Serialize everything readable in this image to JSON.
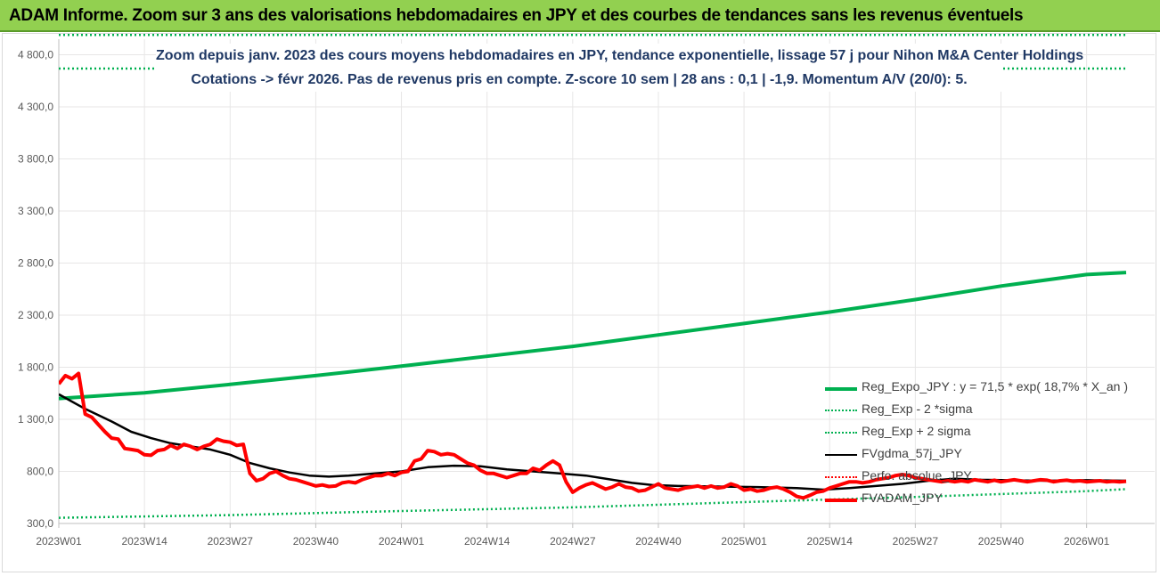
{
  "banner": {
    "title": "ADAM Informe. Zoom sur 3 ans des valorisations hebdomadaires en JPY et des courbes de tendances sans les revenus éventuels"
  },
  "chart_data": {
    "type": "line",
    "title": "Zoom depuis janv. 2023 des cours moyens hebdomadaires en JPY, tendance exponentielle, lissage 57 j pour Nihon M&A Center Holdings",
    "subtitle": "Cotations -> févr 2026. Pas de revenus pris en compte. Z-score 10 sem | 28 ans : 0,1 | -1,9. Momentum A/V (20/0): 5.",
    "ylim": [
      300,
      4950
    ],
    "y_ticks": [
      300,
      800,
      1300,
      1800,
      2300,
      2800,
      3300,
      3800,
      4300,
      4800
    ],
    "y_tick_labels": [
      "300,0",
      "800,0",
      "1 300,0",
      "1 800,0",
      "2 300,0",
      "2 800,0",
      "3 300,0",
      "3 800,0",
      "4 300,0",
      "4 800,0"
    ],
    "x_tick_labels": [
      "2023W01",
      "2023W14",
      "2023W27",
      "2023W40",
      "2024W01",
      "2024W14",
      "2024W27",
      "2024W40",
      "2025W01",
      "2025W14",
      "2025W27",
      "2025W40",
      "2026W01"
    ],
    "x_weeks": 163,
    "x_tick_step": 13,
    "grid": true,
    "legend_position": "bottom-right",
    "colors": {
      "reg": "#00b050",
      "band_low": "#00b050",
      "band_high": "#00b050",
      "fvgdma": "#000000",
      "perfo": "#ff0000",
      "fvadam": "#ff0000",
      "axis": "#bfbfbf",
      "grid": "#e7e6e6",
      "title": "#1f3864"
    },
    "series": [
      {
        "key": "reg",
        "name": "Reg_Expo_JPY : y = 71,5 * exp( 18,7% *  X_an )",
        "style": "solid-thick",
        "points": [
          [
            0,
            1500
          ],
          [
            13,
            1555
          ],
          [
            26,
            1635
          ],
          [
            39,
            1720
          ],
          [
            52,
            1810
          ],
          [
            65,
            1905
          ],
          [
            78,
            2000
          ],
          [
            91,
            2110
          ],
          [
            104,
            2220
          ],
          [
            117,
            2330
          ],
          [
            130,
            2450
          ],
          [
            143,
            2580
          ],
          [
            156,
            2690
          ],
          [
            162,
            2710
          ]
        ]
      },
      {
        "key": "band_low",
        "name": "Reg_Exp - 2 *sigma",
        "style": "dotted",
        "points": [
          [
            0,
            355
          ],
          [
            26,
            380
          ],
          [
            52,
            420
          ],
          [
            78,
            455
          ],
          [
            104,
            505
          ],
          [
            130,
            555
          ],
          [
            156,
            610
          ],
          [
            162,
            630
          ]
        ]
      },
      {
        "key": "band_high",
        "name": "Reg_Exp + 2 sigma",
        "style": "dotted",
        "points": [
          [
            0,
            5000
          ],
          [
            162,
            5000
          ]
        ]
      },
      {
        "key": "fvgdma",
        "name": "FVgdma_57j_JPY",
        "style": "solid",
        "points": [
          [
            0,
            1540
          ],
          [
            4,
            1400
          ],
          [
            8,
            1280
          ],
          [
            11,
            1180
          ],
          [
            14,
            1120
          ],
          [
            17,
            1070
          ],
          [
            20,
            1040
          ],
          [
            23,
            1010
          ],
          [
            26,
            960
          ],
          [
            29,
            880
          ],
          [
            32,
            830
          ],
          [
            35,
            790
          ],
          [
            38,
            760
          ],
          [
            41,
            750
          ],
          [
            44,
            760
          ],
          [
            48,
            780
          ],
          [
            52,
            800
          ],
          [
            56,
            840
          ],
          [
            60,
            855
          ],
          [
            64,
            850
          ],
          [
            68,
            820
          ],
          [
            72,
            800
          ],
          [
            76,
            780
          ],
          [
            80,
            760
          ],
          [
            84,
            720
          ],
          [
            87,
            690
          ],
          [
            90,
            670
          ],
          [
            94,
            660
          ],
          [
            100,
            655
          ],
          [
            106,
            650
          ],
          [
            112,
            640
          ],
          [
            116,
            625
          ],
          [
            120,
            640
          ],
          [
            124,
            660
          ],
          [
            128,
            680
          ],
          [
            132,
            710
          ],
          [
            136,
            730
          ],
          [
            140,
            720
          ],
          [
            144,
            715
          ],
          [
            150,
            710
          ],
          [
            156,
            715
          ],
          [
            162,
            710
          ]
        ]
      },
      {
        "key": "perfo",
        "name": "Perfo. absolue_JPY",
        "style": "dotted",
        "points": []
      },
      {
        "key": "fvadam",
        "name": "FVADAM_JPY",
        "style": "solid-thick",
        "points": [
          [
            0,
            1640
          ],
          [
            1,
            1720
          ],
          [
            2,
            1690
          ],
          [
            3,
            1740
          ],
          [
            4,
            1350
          ],
          [
            5,
            1320
          ],
          [
            6,
            1250
          ],
          [
            7,
            1180
          ],
          [
            8,
            1120
          ],
          [
            9,
            1110
          ],
          [
            10,
            1020
          ],
          [
            11,
            1010
          ],
          [
            12,
            1000
          ],
          [
            13,
            960
          ],
          [
            14,
            955
          ],
          [
            15,
            1000
          ],
          [
            16,
            1010
          ],
          [
            17,
            1050
          ],
          [
            18,
            1020
          ],
          [
            19,
            1060
          ],
          [
            20,
            1040
          ],
          [
            21,
            1010
          ],
          [
            22,
            1040
          ],
          [
            23,
            1060
          ],
          [
            24,
            1110
          ],
          [
            25,
            1090
          ],
          [
            26,
            1080
          ],
          [
            27,
            1050
          ],
          [
            28,
            1060
          ],
          [
            29,
            780
          ],
          [
            30,
            710
          ],
          [
            31,
            730
          ],
          [
            32,
            780
          ],
          [
            33,
            800
          ],
          [
            34,
            760
          ],
          [
            35,
            730
          ],
          [
            36,
            720
          ],
          [
            37,
            700
          ],
          [
            38,
            680
          ],
          [
            39,
            660
          ],
          [
            40,
            670
          ],
          [
            41,
            655
          ],
          [
            42,
            660
          ],
          [
            43,
            690
          ],
          [
            44,
            700
          ],
          [
            45,
            690
          ],
          [
            46,
            720
          ],
          [
            47,
            740
          ],
          [
            48,
            760
          ],
          [
            49,
            760
          ],
          [
            50,
            780
          ],
          [
            51,
            760
          ],
          [
            52,
            790
          ],
          [
            53,
            800
          ],
          [
            54,
            900
          ],
          [
            55,
            920
          ],
          [
            56,
            1000
          ],
          [
            57,
            990
          ],
          [
            58,
            960
          ],
          [
            59,
            970
          ],
          [
            60,
            960
          ],
          [
            61,
            920
          ],
          [
            62,
            880
          ],
          [
            63,
            860
          ],
          [
            64,
            810
          ],
          [
            65,
            780
          ],
          [
            66,
            780
          ],
          [
            67,
            760
          ],
          [
            68,
            740
          ],
          [
            69,
            760
          ],
          [
            70,
            780
          ],
          [
            71,
            780
          ],
          [
            72,
            830
          ],
          [
            73,
            810
          ],
          [
            74,
            860
          ],
          [
            75,
            900
          ],
          [
            76,
            860
          ],
          [
            77,
            700
          ],
          [
            78,
            600
          ],
          [
            79,
            640
          ],
          [
            80,
            670
          ],
          [
            81,
            690
          ],
          [
            82,
            660
          ],
          [
            83,
            630
          ],
          [
            84,
            650
          ],
          [
            85,
            680
          ],
          [
            86,
            650
          ],
          [
            87,
            640
          ],
          [
            88,
            610
          ],
          [
            89,
            620
          ],
          [
            90,
            650
          ],
          [
            91,
            680
          ],
          [
            92,
            640
          ],
          [
            93,
            630
          ],
          [
            94,
            620
          ],
          [
            95,
            640
          ],
          [
            96,
            650
          ],
          [
            97,
            660
          ],
          [
            98,
            640
          ],
          [
            99,
            660
          ],
          [
            100,
            640
          ],
          [
            101,
            650
          ],
          [
            102,
            680
          ],
          [
            103,
            660
          ],
          [
            104,
            620
          ],
          [
            105,
            630
          ],
          [
            106,
            610
          ],
          [
            107,
            620
          ],
          [
            108,
            640
          ],
          [
            109,
            650
          ],
          [
            110,
            630
          ],
          [
            111,
            600
          ],
          [
            112,
            560
          ],
          [
            113,
            545
          ],
          [
            114,
            570
          ],
          [
            115,
            600
          ],
          [
            116,
            610
          ],
          [
            117,
            640
          ],
          [
            118,
            660
          ],
          [
            119,
            680
          ],
          [
            120,
            700
          ],
          [
            121,
            700
          ],
          [
            122,
            690
          ],
          [
            123,
            700
          ],
          [
            124,
            720
          ],
          [
            125,
            730
          ],
          [
            126,
            740
          ],
          [
            127,
            760
          ],
          [
            128,
            770
          ],
          [
            129,
            760
          ],
          [
            130,
            740
          ],
          [
            131,
            730
          ],
          [
            132,
            720
          ],
          [
            133,
            710
          ],
          [
            134,
            700
          ],
          [
            135,
            710
          ],
          [
            136,
            700
          ],
          [
            137,
            710
          ],
          [
            138,
            700
          ],
          [
            139,
            720
          ],
          [
            140,
            710
          ],
          [
            141,
            700
          ],
          [
            142,
            715
          ],
          [
            143,
            700
          ],
          [
            144,
            710
          ],
          [
            145,
            720
          ],
          [
            146,
            710
          ],
          [
            147,
            700
          ],
          [
            148,
            710
          ],
          [
            149,
            720
          ],
          [
            150,
            715
          ],
          [
            151,
            700
          ],
          [
            152,
            710
          ],
          [
            153,
            715
          ],
          [
            154,
            705
          ],
          [
            155,
            710
          ],
          [
            156,
            700
          ],
          [
            157,
            705
          ],
          [
            158,
            710
          ],
          [
            159,
            700
          ],
          [
            160,
            705
          ],
          [
            161,
            700
          ],
          [
            162,
            705
          ]
        ]
      }
    ]
  }
}
